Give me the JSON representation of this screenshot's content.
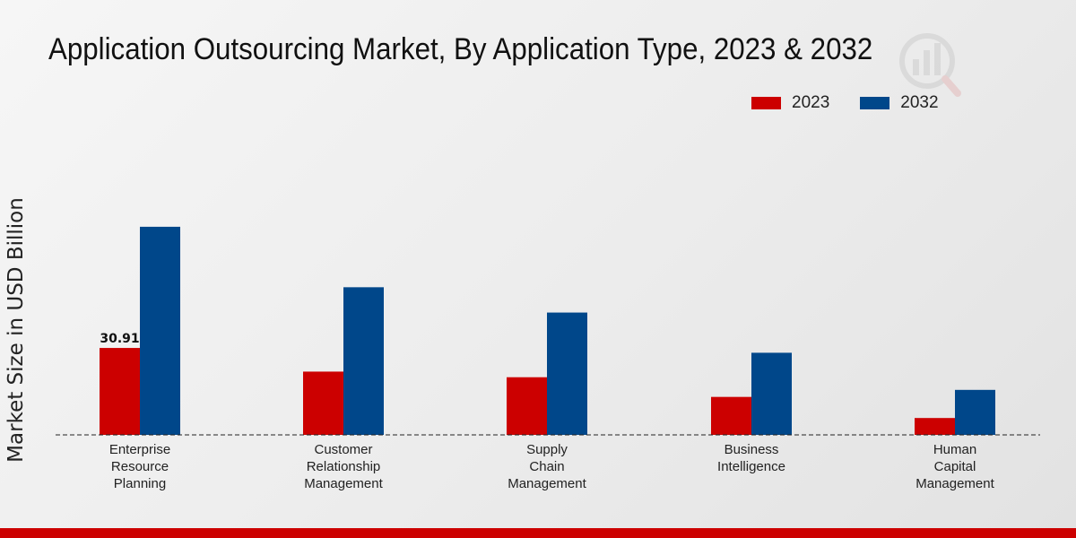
{
  "chart_data": {
    "type": "bar",
    "title": "Application Outsourcing Market, By Application Type, 2023 & 2032",
    "ylabel": "Market Size in USD Billion",
    "xlabel": "",
    "categories": [
      [
        "Enterprise",
        "Resource",
        "Planning"
      ],
      [
        "Customer",
        "Relationship",
        "Management"
      ],
      [
        "Supply",
        "Chain",
        "Management"
      ],
      [
        "Business",
        "Intelligence"
      ],
      [
        "Human",
        "Capital",
        "Management"
      ]
    ],
    "series": [
      {
        "name": "2023",
        "color": "#cc0000",
        "values": [
          30.91,
          22.5,
          20.5,
          13.5,
          6.0
        ]
      },
      {
        "name": "2032",
        "color": "#00478a",
        "values": [
          74.0,
          52.5,
          43.5,
          29.2,
          16.0
        ]
      }
    ],
    "data_labels": [
      {
        "series": 0,
        "index": 0,
        "text": "30.91"
      }
    ],
    "ylim": [
      0,
      110
    ]
  }
}
